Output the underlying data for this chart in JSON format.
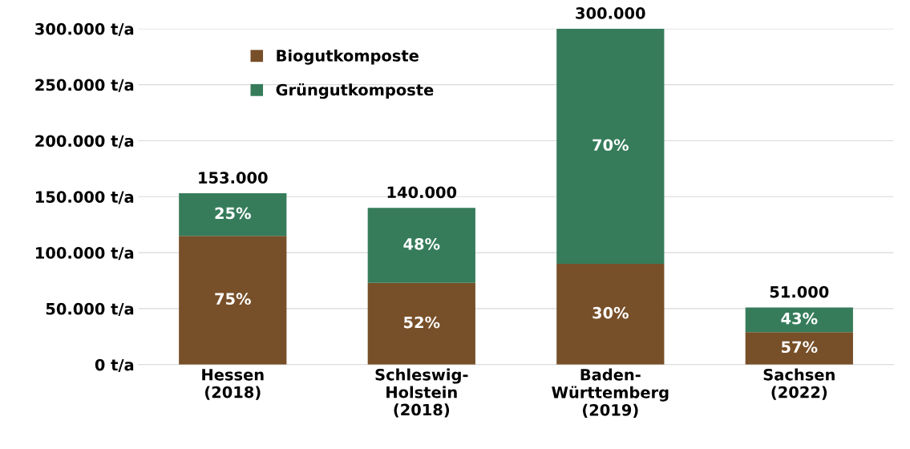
{
  "chart_data": {
    "type": "bar",
    "stacked": true,
    "categories": [
      "Hessen\n(2018)",
      "Schleswig-\nHolstein\n(2018)",
      "Baden-\nWürttemberg\n(2019)",
      "Sachsen\n(2022)"
    ],
    "series": [
      {
        "name": "Biogutkomposte",
        "color": "#774f28",
        "values": [
          115000,
          73000,
          90000,
          29000
        ]
      },
      {
        "name": "Grüngutkomposte",
        "color": "#367c5b",
        "values": [
          38000,
          67000,
          210000,
          22000
        ]
      }
    ],
    "annotations": [
      "75%",
      "52%",
      "30%",
      "57%",
      "25%",
      "48%",
      "70%",
      "43%"
    ],
    "totals": [
      "153.000",
      "140.000",
      "300.000",
      "51.000"
    ],
    "ylim": [
      0,
      300000
    ],
    "yticks": [
      {
        "value": 0,
        "label": "0 t/a"
      },
      {
        "value": 50000,
        "label": "50.000 t/a"
      },
      {
        "value": 100000,
        "label": "100.000 t/a"
      },
      {
        "value": 150000,
        "label": "150.000 t/a"
      },
      {
        "value": 200000,
        "label": "200.000 t/a"
      },
      {
        "value": 250000,
        "label": "250.000 t/a"
      },
      {
        "value": 300000,
        "label": "300.000 t/a"
      }
    ],
    "grid": "y",
    "legend": "top left"
  }
}
